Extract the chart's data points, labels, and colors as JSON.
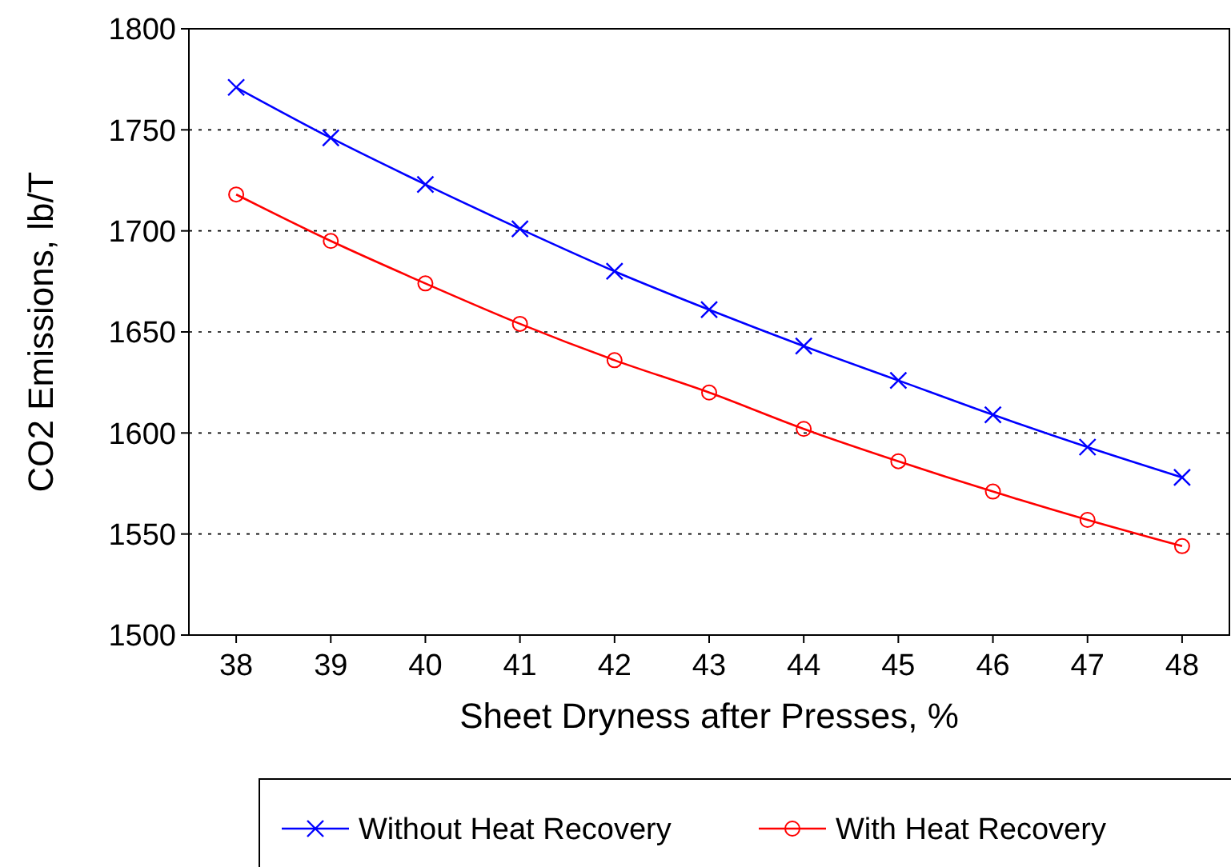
{
  "chart_data": {
    "type": "line",
    "xlabel": "Sheet Dryness after Presses, %",
    "ylabel": "CO2 Emissions, lb/T",
    "categories": [
      "38",
      "39",
      "40",
      "41",
      "42",
      "43",
      "44",
      "45",
      "46",
      "47",
      "48"
    ],
    "ylim": [
      1500,
      1800
    ],
    "yticks": [
      1500,
      1550,
      1600,
      1650,
      1700,
      1750,
      1800
    ],
    "grid": "y",
    "legend": "bottom",
    "line_style": "solid",
    "series": [
      {
        "name": "Without Heat Recovery",
        "color": "#0000ff",
        "marker": "cross",
        "values": [
          1771,
          1746,
          1723,
          1701,
          1680,
          1661,
          1643,
          1626,
          1609,
          1593,
          1578
        ]
      },
      {
        "name": "With Heat Recovery",
        "color": "#ff0000",
        "marker": "circle",
        "values": [
          1718,
          1695,
          1674,
          1654,
          1636,
          1620,
          1602,
          1586,
          1571,
          1557,
          1544
        ]
      }
    ]
  }
}
